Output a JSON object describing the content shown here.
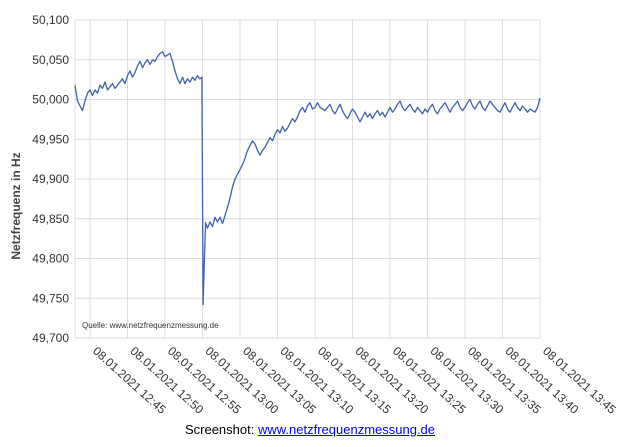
{
  "chart_data": {
    "type": "line",
    "title": "",
    "xlabel": "",
    "ylabel": "Netzfrequenz in Hz",
    "ylim": [
      49.7,
      50.1
    ],
    "xlim": [
      "08.01.2021 12:43",
      "08.01.2021 13:45"
    ],
    "yticks": [
      "49,700",
      "49,750",
      "49,800",
      "49,850",
      "49,900",
      "49,950",
      "50,000",
      "50,050",
      "50,100"
    ],
    "xticks": [
      "08.01.2021 12:45",
      "08.01.2021 12:50",
      "08.01.2021 12:55",
      "08.01.2021 13:00",
      "08.01.2021 13:05",
      "08.01.2021 13:10",
      "08.01.2021 13:15",
      "08.01.2021 13:20",
      "08.01.2021 13:25",
      "08.01.2021 13:30",
      "08.01.2021 13:35",
      "08.01.2021 13:40",
      "08.01.2021 13:45"
    ],
    "grid": true,
    "source_note": "Quelle: www.netzfrequenzmessung.de",
    "series": [
      {
        "color": "#3d62a8",
        "points": [
          [
            "12:43:00",
            50.018
          ],
          [
            "12:43:20",
            49.998
          ],
          [
            "12:43:40",
            49.992
          ],
          [
            "12:44:00",
            49.986
          ],
          [
            "12:44:20",
            49.998
          ],
          [
            "12:44:40",
            50.008
          ],
          [
            "12:45:00",
            50.012
          ],
          [
            "12:45:20",
            50.005
          ],
          [
            "12:45:40",
            50.012
          ],
          [
            "12:46:00",
            50.008
          ],
          [
            "12:46:20",
            50.018
          ],
          [
            "12:46:40",
            50.014
          ],
          [
            "12:47:00",
            50.022
          ],
          [
            "12:47:20",
            50.012
          ],
          [
            "12:47:40",
            50.016
          ],
          [
            "12:48:00",
            50.02
          ],
          [
            "12:48:20",
            50.014
          ],
          [
            "12:48:40",
            50.018
          ],
          [
            "12:49:00",
            50.022
          ],
          [
            "12:49:20",
            50.026
          ],
          [
            "12:49:40",
            50.02
          ],
          [
            "12:50:00",
            50.03
          ],
          [
            "12:50:20",
            50.036
          ],
          [
            "12:50:40",
            50.028
          ],
          [
            "12:51:00",
            50.034
          ],
          [
            "12:51:20",
            50.042
          ],
          [
            "12:51:40",
            50.048
          ],
          [
            "12:52:00",
            50.04
          ],
          [
            "12:52:20",
            50.046
          ],
          [
            "12:52:40",
            50.05
          ],
          [
            "12:53:00",
            50.044
          ],
          [
            "12:53:20",
            50.05
          ],
          [
            "12:53:40",
            50.048
          ],
          [
            "12:54:00",
            50.054
          ],
          [
            "12:54:20",
            50.058
          ],
          [
            "12:54:40",
            50.06
          ],
          [
            "12:55:00",
            50.054
          ],
          [
            "12:55:20",
            50.056
          ],
          [
            "12:55:40",
            50.058
          ],
          [
            "12:56:00",
            50.048
          ],
          [
            "12:56:20",
            50.036
          ],
          [
            "12:56:40",
            50.026
          ],
          [
            "12:57:00",
            50.02
          ],
          [
            "12:57:20",
            50.028
          ],
          [
            "12:57:40",
            50.02
          ],
          [
            "12:58:00",
            50.026
          ],
          [
            "12:58:20",
            50.022
          ],
          [
            "12:58:40",
            50.028
          ],
          [
            "12:59:00",
            50.024
          ],
          [
            "12:59:20",
            50.03
          ],
          [
            "12:59:40",
            50.026
          ],
          [
            "12:59:55",
            50.028
          ],
          [
            "13:00:05",
            49.742
          ],
          [
            "13:00:15",
            49.8
          ],
          [
            "13:00:25",
            49.845
          ],
          [
            "13:00:40",
            49.838
          ],
          [
            "13:01:00",
            49.846
          ],
          [
            "13:01:20",
            49.84
          ],
          [
            "13:01:40",
            49.852
          ],
          [
            "13:02:00",
            49.846
          ],
          [
            "13:02:20",
            49.852
          ],
          [
            "13:02:40",
            49.844
          ],
          [
            "13:03:00",
            49.854
          ],
          [
            "13:03:20",
            49.864
          ],
          [
            "13:03:40",
            49.876
          ],
          [
            "13:04:00",
            49.89
          ],
          [
            "13:04:20",
            49.9
          ],
          [
            "13:04:40",
            49.906
          ],
          [
            "13:05:00",
            49.912
          ],
          [
            "13:05:20",
            49.918
          ],
          [
            "13:05:40",
            49.926
          ],
          [
            "13:06:00",
            49.936
          ],
          [
            "13:06:20",
            49.942
          ],
          [
            "13:06:40",
            49.948
          ],
          [
            "13:07:00",
            49.944
          ],
          [
            "13:07:20",
            49.936
          ],
          [
            "13:07:40",
            49.93
          ],
          [
            "13:08:00",
            49.936
          ],
          [
            "13:08:20",
            49.94
          ],
          [
            "13:08:40",
            49.946
          ],
          [
            "13:09:00",
            49.952
          ],
          [
            "13:09:20",
            49.948
          ],
          [
            "13:09:40",
            49.956
          ],
          [
            "13:10:00",
            49.962
          ],
          [
            "13:10:20",
            49.958
          ],
          [
            "13:10:40",
            49.966
          ],
          [
            "13:11:00",
            49.96
          ],
          [
            "13:11:20",
            49.964
          ],
          [
            "13:11:40",
            49.97
          ],
          [
            "13:12:00",
            49.976
          ],
          [
            "13:12:20",
            49.972
          ],
          [
            "13:12:40",
            49.978
          ],
          [
            "13:13:00",
            49.986
          ],
          [
            "13:13:20",
            49.99
          ],
          [
            "13:13:40",
            49.984
          ],
          [
            "13:14:00",
            49.992
          ],
          [
            "13:14:20",
            49.996
          ],
          [
            "13:14:40",
            49.988
          ],
          [
            "13:15:00",
            49.99
          ],
          [
            "13:15:20",
            49.996
          ],
          [
            "13:15:40",
            49.99
          ],
          [
            "13:16:00",
            49.988
          ],
          [
            "13:16:20",
            49.986
          ],
          [
            "13:16:40",
            49.99
          ],
          [
            "13:17:00",
            49.994
          ],
          [
            "13:17:20",
            49.986
          ],
          [
            "13:17:40",
            49.982
          ],
          [
            "13:18:00",
            49.988
          ],
          [
            "13:18:20",
            49.994
          ],
          [
            "13:18:40",
            49.986
          ],
          [
            "13:19:00",
            49.98
          ],
          [
            "13:19:20",
            49.976
          ],
          [
            "13:19:40",
            49.982
          ],
          [
            "13:20:00",
            49.988
          ],
          [
            "13:20:20",
            49.984
          ],
          [
            "13:20:40",
            49.978
          ],
          [
            "13:21:00",
            49.972
          ],
          [
            "13:21:20",
            49.978
          ],
          [
            "13:21:40",
            49.984
          ],
          [
            "13:22:00",
            49.978
          ],
          [
            "13:22:20",
            49.982
          ],
          [
            "13:22:40",
            49.976
          ],
          [
            "13:23:00",
            49.982
          ],
          [
            "13:23:20",
            49.986
          ],
          [
            "13:23:40",
            49.98
          ],
          [
            "13:24:00",
            49.984
          ],
          [
            "13:24:20",
            49.978
          ],
          [
            "13:24:40",
            49.984
          ],
          [
            "13:25:00",
            49.99
          ],
          [
            "13:25:20",
            49.984
          ],
          [
            "13:25:40",
            49.988
          ],
          [
            "13:26:00",
            49.994
          ],
          [
            "13:26:20",
            49.998
          ],
          [
            "13:26:40",
            49.99
          ],
          [
            "13:27:00",
            49.986
          ],
          [
            "13:27:20",
            49.99
          ],
          [
            "13:27:40",
            49.994
          ],
          [
            "13:28:00",
            49.988
          ],
          [
            "13:28:20",
            49.984
          ],
          [
            "13:28:40",
            49.99
          ],
          [
            "13:29:00",
            49.986
          ],
          [
            "13:29:20",
            49.982
          ],
          [
            "13:29:40",
            49.988
          ],
          [
            "13:30:00",
            49.984
          ],
          [
            "13:30:20",
            49.99
          ],
          [
            "13:30:40",
            49.994
          ],
          [
            "13:31:00",
            49.986
          ],
          [
            "13:31:20",
            49.982
          ],
          [
            "13:31:40",
            49.988
          ],
          [
            "13:32:00",
            49.992
          ],
          [
            "13:32:20",
            49.996
          ],
          [
            "13:32:40",
            49.99
          ],
          [
            "13:33:00",
            49.984
          ],
          [
            "13:33:20",
            49.99
          ],
          [
            "13:33:40",
            49.994
          ],
          [
            "13:34:00",
            49.998
          ],
          [
            "13:34:20",
            49.99
          ],
          [
            "13:34:40",
            49.986
          ],
          [
            "13:35:00",
            49.99
          ],
          [
            "13:35:20",
            49.996
          ],
          [
            "13:35:40",
            50.0
          ],
          [
            "13:36:00",
            49.992
          ],
          [
            "13:36:20",
            49.988
          ],
          [
            "13:36:40",
            49.994
          ],
          [
            "13:37:00",
            49.998
          ],
          [
            "13:37:20",
            49.99
          ],
          [
            "13:37:40",
            49.986
          ],
          [
            "13:38:00",
            49.992
          ],
          [
            "13:38:20",
            49.998
          ],
          [
            "13:38:40",
            49.994
          ],
          [
            "13:39:00",
            49.99
          ],
          [
            "13:39:20",
            49.986
          ],
          [
            "13:39:40",
            49.984
          ],
          [
            "13:40:00",
            49.99
          ],
          [
            "13:40:20",
            49.996
          ],
          [
            "13:40:40",
            49.988
          ],
          [
            "13:41:00",
            49.984
          ],
          [
            "13:41:20",
            49.99
          ],
          [
            "13:41:40",
            49.996
          ],
          [
            "13:42:00",
            49.99
          ],
          [
            "13:42:20",
            49.986
          ],
          [
            "13:42:40",
            49.992
          ],
          [
            "13:43:00",
            49.988
          ],
          [
            "13:43:20",
            49.984
          ],
          [
            "13:43:40",
            49.988
          ],
          [
            "13:44:00",
            49.986
          ],
          [
            "13:44:20",
            49.984
          ],
          [
            "13:44:40",
            49.99
          ],
          [
            "13:45:00",
            50.002
          ]
        ]
      }
    ]
  },
  "caption": {
    "prefix": "Screenshot: ",
    "link_text": "www.netzfrequenzmessung.de"
  }
}
